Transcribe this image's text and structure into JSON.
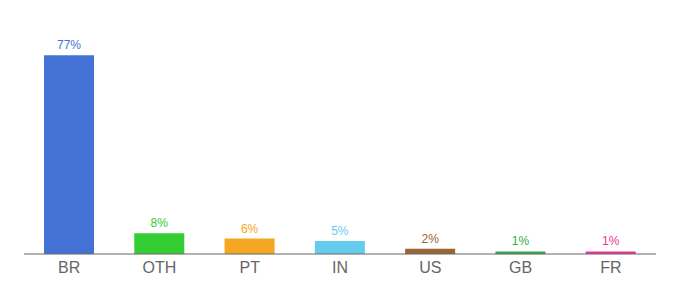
{
  "chart_data": {
    "type": "bar",
    "categories": [
      "BR",
      "OTH",
      "PT",
      "IN",
      "US",
      "GB",
      "FR"
    ],
    "values": [
      77,
      8,
      6,
      5,
      2,
      1,
      1
    ],
    "value_labels": [
      "77%",
      "8%",
      "6%",
      "5%",
      "2%",
      "1%",
      "1%"
    ],
    "colors": [
      "#4472d4",
      "#33cc33",
      "#f5a623",
      "#66ccee",
      "#996633",
      "#33aa44",
      "#ee3399"
    ],
    "ylim": [
      0,
      86
    ],
    "data_labels": true,
    "tick_labels": "x",
    "grid": false
  }
}
